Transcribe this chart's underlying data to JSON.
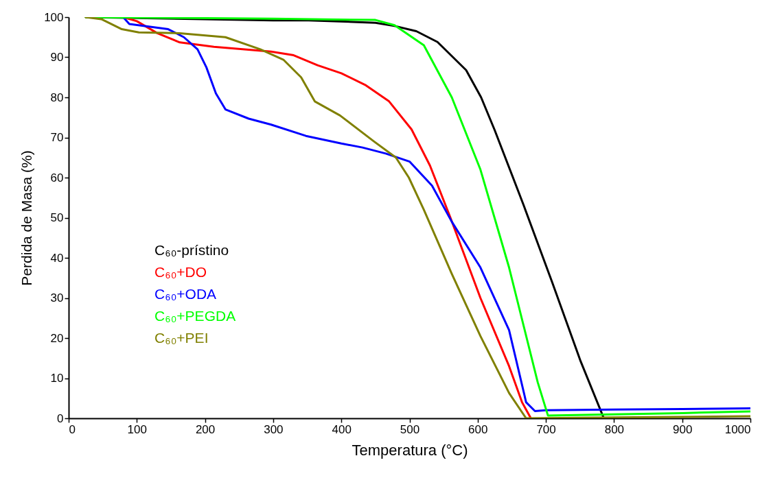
{
  "chart_data": {
    "type": "line",
    "xlabel": "Temperatura (°C)",
    "ylabel": "Perdida de Masa (%)",
    "xlim": [
      0,
      1000
    ],
    "ylim": [
      0,
      100
    ],
    "xticks": [
      0,
      100,
      200,
      300,
      400,
      500,
      600,
      700,
      800,
      900,
      1000
    ],
    "yticks": [
      0,
      10,
      20,
      30,
      40,
      50,
      60,
      70,
      80,
      90,
      100
    ],
    "grid": false,
    "legend": "bottom left",
    "marker": "none",
    "line_style": "solid",
    "series": [
      {
        "name": "C₆₀-prístino",
        "color": "#000000",
        "x": [
          25,
          100,
          200,
          300,
          352,
          450,
          478,
          510,
          541,
          583,
          605,
          625,
          667,
          709,
          751,
          785
        ],
        "values": [
          100,
          99.8,
          99.5,
          99.2,
          99.2,
          98.6,
          97.8,
          96.5,
          93.8,
          86.8,
          80,
          71.8,
          53.3,
          34,
          14.2,
          0
        ]
      },
      {
        "name": "C₆₀+DO",
        "color": "#ff0000",
        "x": [
          80,
          100,
          130,
          163,
          213,
          297,
          330,
          365,
          400,
          436,
          470,
          503,
          530,
          560,
          604,
          646,
          665,
          678
        ],
        "values": [
          100,
          99,
          96,
          93.7,
          92.6,
          91.4,
          90.5,
          88,
          86,
          83,
          79,
          72,
          63,
          50,
          30,
          13,
          4,
          0
        ]
      },
      {
        "name": "C₆₀+ODA",
        "color": "#0000ff",
        "x": [
          80,
          89,
          146,
          169,
          189,
          202,
          216,
          230,
          264,
          297,
          348,
          400,
          431,
          465,
          500,
          533,
          562,
          604,
          646,
          671,
          684,
          700,
          800,
          900,
          1000
        ],
        "values": [
          100,
          98.3,
          97,
          95,
          92,
          87.5,
          81,
          77,
          74.7,
          73.2,
          70.4,
          68.5,
          67.5,
          66,
          64,
          58,
          49,
          37.6,
          22,
          4,
          1.8,
          2,
          2.2,
          2.3,
          2.5
        ]
      },
      {
        "name": "C₆₀+PEGDA",
        "color": "#00ff00",
        "x": [
          25,
          300,
          450,
          478,
          521,
          562,
          604,
          646,
          688,
          703,
          800,
          900,
          1000
        ],
        "values": [
          100,
          99.6,
          99.3,
          98,
          93,
          80,
          62,
          37.6,
          9,
          0.7,
          1,
          1.3,
          1.7
        ]
      },
      {
        "name": "C₆₀+PEI",
        "color": "#808000",
        "x": [
          25,
          48,
          78,
          103,
          163,
          230,
          281,
          315,
          341,
          361,
          398,
          448,
          480,
          499,
          521,
          562,
          604,
          646,
          671,
          800,
          1000
        ],
        "values": [
          100,
          99.5,
          97,
          96.2,
          96,
          95,
          92,
          89.4,
          85,
          79,
          75.5,
          69,
          65,
          60,
          52,
          36,
          20.5,
          6.3,
          0,
          0.2,
          0.5
        ]
      }
    ]
  }
}
